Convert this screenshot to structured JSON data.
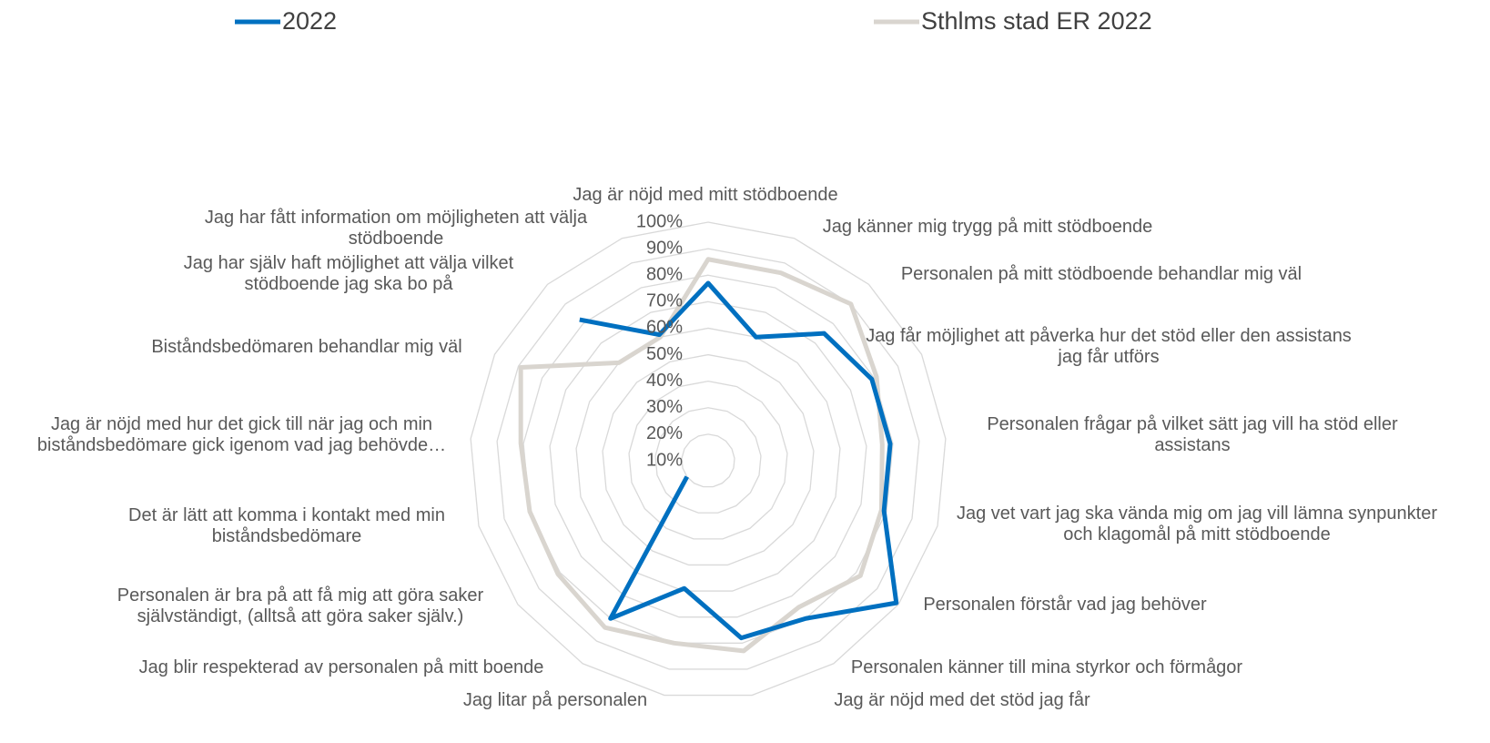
{
  "chart_data": {
    "type": "radar",
    "categories": [
      "Jag är nöjd med mitt stödboende",
      "Jag känner mig trygg på mitt stödboende",
      "Personalen på mitt stödboende behandlar mig väl",
      "Jag får möjlighet att påverka hur det stöd eller den assistans jag får utförs",
      "Personalen frågar på vilket sätt jag vill ha stöd eller assistans",
      "Jag vet vart jag ska vända mig om jag vill lämna synpunkter och klagomål på mitt stödboende",
      "Personalen förstår vad jag behöver",
      "Personalen känner till mina styrkor och förmågor",
      "Jag är nöjd med det stöd jag får",
      "Jag litar på personalen",
      "Jag blir respekterad av personalen på mitt boende",
      "Personalen är bra på att få mig att göra saker självständigt, (alltså att göra saker själv.)",
      "Det är lätt att komma i kontakt med min biståndsbedömare",
      "Jag är nöjd med hur det gick till när jag och min biståndsbedömare gick igenom vad jag behövde…",
      "Biståndsbedömaren behandlar mig väl",
      "Jag har själv haft möjlighet att välja vilket stödboende jag ska bo på",
      "Jag har fått information om möjligheten att välja stödboende"
    ],
    "series": [
      {
        "name": "2022",
        "color": "#0070c0",
        "values": [
          77,
          60,
          75,
          79,
          79,
          79,
          99,
          80,
          78,
          59,
          80,
          20,
          null,
          null,
          null,
          82,
          61
        ]
      },
      {
        "name": "Sthlms stad ER 2022",
        "color": "#d9d5cf",
        "values": [
          86,
          86,
          90,
          81,
          76,
          78,
          82,
          75,
          83,
          80,
          84,
          81,
          80,
          81,
          89,
          60,
          60
        ]
      }
    ],
    "ylim": [
      10,
      100
    ],
    "yticks": [
      {
        "value": 10,
        "label": "10%"
      },
      {
        "value": 20,
        "label": "20%"
      },
      {
        "value": 30,
        "label": "30%"
      },
      {
        "value": 40,
        "label": "40%"
      },
      {
        "value": 50,
        "label": "50%"
      },
      {
        "value": 60,
        "label": "60%"
      },
      {
        "value": 70,
        "label": "70%"
      },
      {
        "value": 80,
        "label": "80%"
      },
      {
        "value": 90,
        "label": "90%"
      },
      {
        "value": 100,
        "label": "100%"
      }
    ],
    "grid": true,
    "legend": "top"
  }
}
